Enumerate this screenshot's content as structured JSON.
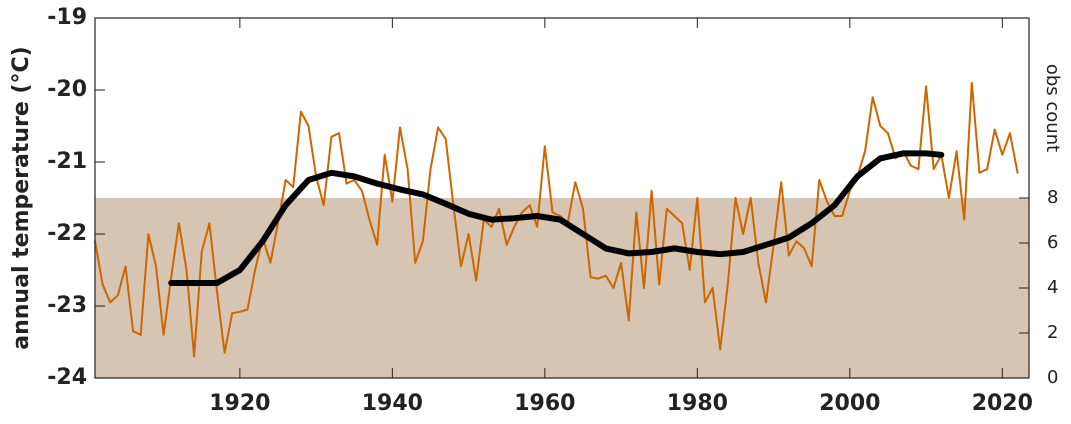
{
  "chart_data": {
    "type": "line",
    "ylabel": "annual temperature (°C)",
    "y2label": "obs count",
    "xlim": [
      1901,
      2023.5
    ],
    "xticks": [
      1920,
      1940,
      1960,
      1980,
      2000,
      2020
    ],
    "ylim": [
      -24,
      -19
    ],
    "yticks": [
      -24,
      -23,
      -22,
      -21,
      -20,
      -19
    ],
    "y2lim": [
      0,
      16
    ],
    "y2ticks": [
      0,
      2,
      4,
      6,
      8
    ],
    "series": [
      {
        "axis": "y2",
        "fill": true,
        "color": "#d5c5b2",
        "x": [
          1901,
          2023.5
        ],
        "values": [
          8,
          8
        ]
      },
      {
        "color": "#cc6600",
        "x": [
          1901,
          1902,
          1903,
          1904,
          1905,
          1906,
          1907,
          1908,
          1909,
          1910,
          1911,
          1912,
          1913,
          1914,
          1915,
          1916,
          1917,
          1918,
          1919,
          1920,
          1921,
          1922,
          1923,
          1924,
          1925,
          1926,
          1927,
          1928,
          1929,
          1930,
          1931,
          1932,
          1933,
          1934,
          1935,
          1936,
          1937,
          1938,
          1939,
          1940,
          1941,
          1942,
          1943,
          1944,
          1945,
          1946,
          1947,
          1948,
          1949,
          1950,
          1951,
          1952,
          1953,
          1954,
          1955,
          1956,
          1957,
          1958,
          1959,
          1960,
          1961,
          1962,
          1963,
          1964,
          1965,
          1966,
          1967,
          1968,
          1969,
          1970,
          1971,
          1972,
          1973,
          1974,
          1975,
          1976,
          1977,
          1978,
          1979,
          1980,
          1981,
          1982,
          1983,
          1984,
          1985,
          1986,
          1987,
          1988,
          1989,
          1990,
          1991,
          1992,
          1993,
          1994,
          1995,
          1996,
          1997,
          1998,
          1999,
          2000,
          2001,
          2002,
          2003,
          2004,
          2005,
          2006,
          2007,
          2008,
          2009,
          2010,
          2011,
          2012,
          2013,
          2014,
          2015,
          2016,
          2017,
          2018,
          2019,
          2020,
          2021,
          2022
        ],
        "values": [
          -22.1,
          -22.7,
          -22.95,
          -22.85,
          -22.45,
          -23.35,
          -23.4,
          -22.0,
          -22.45,
          -23.4,
          -22.6,
          -21.85,
          -22.5,
          -23.7,
          -22.25,
          -21.85,
          -22.8,
          -23.65,
          -23.1,
          -23.08,
          -23.05,
          -22.5,
          -22.05,
          -22.4,
          -21.85,
          -21.25,
          -21.35,
          -20.3,
          -20.5,
          -21.2,
          -21.6,
          -20.65,
          -20.6,
          -21.3,
          -21.25,
          -21.4,
          -21.8,
          -22.15,
          -20.9,
          -21.55,
          -20.52,
          -21.1,
          -22.4,
          -22.1,
          -21.1,
          -20.52,
          -20.68,
          -21.6,
          -22.45,
          -22.0,
          -22.65,
          -21.8,
          -21.9,
          -21.65,
          -22.15,
          -21.9,
          -21.7,
          -21.6,
          -21.9,
          -20.78,
          -21.7,
          -21.75,
          -21.85,
          -21.28,
          -21.65,
          -22.6,
          -22.62,
          -22.58,
          -22.75,
          -22.4,
          -23.2,
          -21.7,
          -22.75,
          -21.4,
          -22.7,
          -21.65,
          -21.75,
          -21.85,
          -22.5,
          -21.5,
          -22.95,
          -22.75,
          -23.6,
          -22.7,
          -21.5,
          -22.0,
          -21.5,
          -22.4,
          -22.95,
          -22.15,
          -21.28,
          -22.3,
          -22.1,
          -22.2,
          -22.45,
          -21.25,
          -21.55,
          -21.75,
          -21.75,
          -21.4,
          -21.2,
          -20.85,
          -20.1,
          -20.5,
          -20.6,
          -20.95,
          -20.85,
          -21.05,
          -21.1,
          -19.95,
          -21.1,
          -20.9,
          -21.5,
          -20.85,
          -21.8,
          -19.9,
          -21.15,
          -21.1,
          -20.55,
          -20.9,
          -20.6,
          -21.15
        ]
      },
      {
        "color": "#000000",
        "x": [
          1911,
          1914,
          1917,
          1920,
          1923,
          1926,
          1929,
          1932,
          1935,
          1938,
          1941,
          1944,
          1947,
          1950,
          1953,
          1956,
          1959,
          1962,
          1965,
          1968,
          1971,
          1974,
          1977,
          1980,
          1983,
          1986,
          1989,
          1992,
          1995,
          1998,
          2001,
          2004,
          2007,
          2010,
          2012
        ],
        "values": [
          -22.68,
          -22.68,
          -22.68,
          -22.5,
          -22.1,
          -21.6,
          -21.25,
          -21.15,
          -21.2,
          -21.3,
          -21.38,
          -21.45,
          -21.58,
          -21.72,
          -21.8,
          -21.78,
          -21.75,
          -21.8,
          -22.0,
          -22.2,
          -22.27,
          -22.25,
          -22.2,
          -22.25,
          -22.28,
          -22.25,
          -22.15,
          -22.05,
          -21.85,
          -21.6,
          -21.2,
          -20.95,
          -20.88,
          -20.88,
          -20.9
        ]
      }
    ]
  }
}
